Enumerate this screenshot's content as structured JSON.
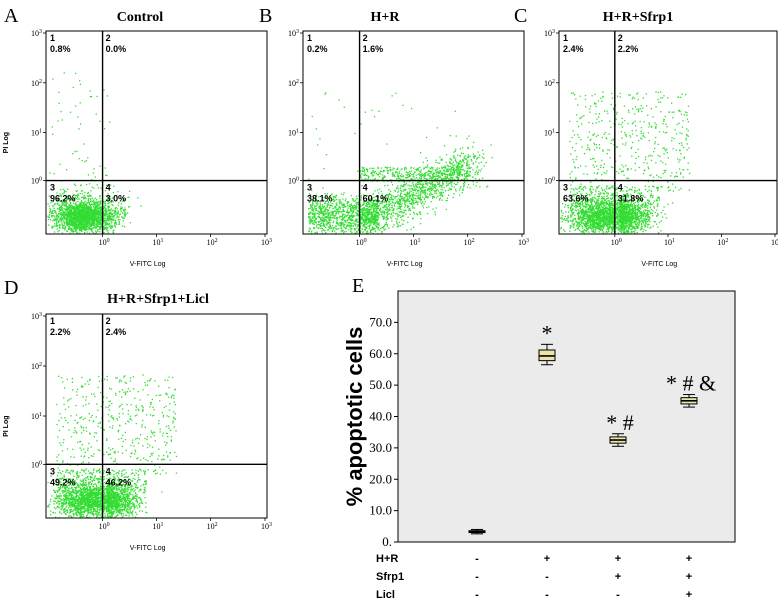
{
  "chart_data": [
    {
      "type": "scatter",
      "panel": "A",
      "title": "Control",
      "xlabel": "V-FITC Log",
      "ylabel": "PI Log",
      "x_ticks": [
        "10",
        "10",
        "10",
        "10"
      ],
      "x_tick_exponents": [
        "0",
        "1",
        "2",
        "3"
      ],
      "y_ticks": [
        "10",
        "10",
        "10",
        "10"
      ],
      "y_tick_exponents": [
        "0",
        "1",
        "2",
        "3"
      ],
      "quadrants": [
        {
          "id": "1",
          "percent": "0.8%"
        },
        {
          "id": "2",
          "percent": "0.0%"
        },
        {
          "id": "3",
          "percent": "96.2%"
        },
        {
          "id": "4",
          "percent": "3.0%"
        }
      ],
      "point_color": "#33dd33"
    },
    {
      "type": "scatter",
      "panel": "B",
      "title": "H+R",
      "xlabel": "V-FITC Log",
      "ylabel": "",
      "x_ticks": [
        "10",
        "10",
        "10",
        "10"
      ],
      "x_tick_exponents": [
        "0",
        "1",
        "2",
        "3"
      ],
      "y_ticks": [
        "10",
        "10",
        "10",
        "10"
      ],
      "y_tick_exponents": [
        "0",
        "1",
        "2",
        "3"
      ],
      "quadrants": [
        {
          "id": "1",
          "percent": "0.2%"
        },
        {
          "id": "2",
          "percent": "1.6%"
        },
        {
          "id": "3",
          "percent": "38.1%"
        },
        {
          "id": "4",
          "percent": "60.1%"
        }
      ],
      "point_color": "#33dd33"
    },
    {
      "type": "scatter",
      "panel": "C",
      "title": "H+R+Sfrp1",
      "xlabel": "V-FITC Log",
      "ylabel": "",
      "x_ticks": [
        "10",
        "10",
        "10",
        "10"
      ],
      "x_tick_exponents": [
        "0",
        "1",
        "2",
        "3"
      ],
      "y_ticks": [
        "10",
        "10",
        "10",
        "10"
      ],
      "y_tick_exponents": [
        "0",
        "1",
        "2",
        "3"
      ],
      "quadrants": [
        {
          "id": "1",
          "percent": "2.4%"
        },
        {
          "id": "2",
          "percent": "2.2%"
        },
        {
          "id": "3",
          "percent": "63.6%"
        },
        {
          "id": "4",
          "percent": "31.8%"
        }
      ],
      "point_color": "#33dd33"
    },
    {
      "type": "scatter",
      "panel": "D",
      "title": "H+R+Sfrp1+Licl",
      "xlabel": "V-FITC Log",
      "ylabel": "PI Log",
      "x_ticks": [
        "10",
        "10",
        "10",
        "10"
      ],
      "x_tick_exponents": [
        "0",
        "1",
        "2",
        "3"
      ],
      "y_ticks": [
        "10",
        "10",
        "10",
        "10"
      ],
      "y_tick_exponents": [
        "0",
        "1",
        "2",
        "3"
      ],
      "quadrants": [
        {
          "id": "1",
          "percent": "2.2%"
        },
        {
          "id": "2",
          "percent": "2.4%"
        },
        {
          "id": "3",
          "percent": "49.2%"
        },
        {
          "id": "4",
          "percent": "46.2%"
        }
      ],
      "point_color": "#33dd33"
    },
    {
      "type": "box",
      "panel": "E",
      "ylabel": "% apoptotic cells",
      "ylim": [
        0,
        80
      ],
      "y_ticks": [
        "0.",
        "10.0",
        "20.0",
        "30.0",
        "40.0",
        "50.0",
        "60.0",
        "70.0"
      ],
      "conditions": [
        {
          "label": "H+R",
          "signs": [
            "-",
            "+",
            "+",
            "+"
          ]
        },
        {
          "label": "Sfrp1",
          "signs": [
            "-",
            "-",
            "+",
            "+"
          ]
        },
        {
          "label": "Licl",
          "signs": [
            "-",
            "-",
            "-",
            "+"
          ]
        }
      ],
      "groups": [
        {
          "whisker_low": 2.6,
          "q1": 3.0,
          "median": 3.3,
          "q3": 3.6,
          "whisker_high": 4.0,
          "annotation": ""
        },
        {
          "whisker_low": 56.5,
          "q1": 57.8,
          "median": 59.3,
          "q3": 61.2,
          "whisker_high": 63.0,
          "annotation": "*"
        },
        {
          "whisker_low": 30.5,
          "q1": 31.5,
          "median": 32.5,
          "q3": 33.5,
          "whisker_high": 34.5,
          "annotation": "*#"
        },
        {
          "whisker_low": 43.0,
          "q1": 44.0,
          "median": 45.0,
          "q3": 46.0,
          "whisker_high": 47.0,
          "annotation": "*#&"
        }
      ],
      "box_color": "#ece3a6",
      "background_color": "#ebebeb"
    }
  ]
}
